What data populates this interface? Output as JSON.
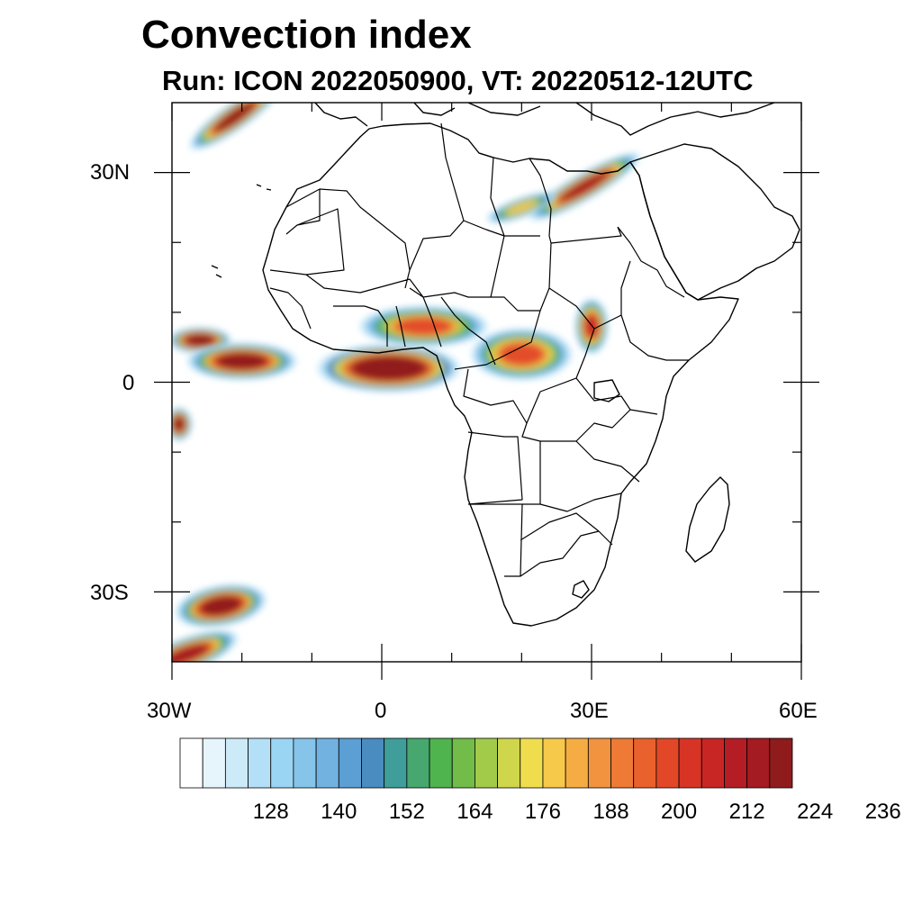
{
  "title": "Convection index",
  "subtitle": "Run: ICON 2022050900,  VT: 20220512-12UTC",
  "axes": {
    "lat_labels": [
      "30N",
      "0",
      "30S"
    ],
    "lon_labels": [
      "30W",
      "0",
      "30E",
      "60E"
    ],
    "lat_values": [
      30,
      0,
      -30
    ],
    "lon_values": [
      -30,
      0,
      30,
      60
    ],
    "lon_range": [
      -30,
      60
    ],
    "lat_range": [
      -40,
      40
    ]
  },
  "colorbar": {
    "labels": [
      "128",
      "140",
      "152",
      "164",
      "176",
      "188",
      "200",
      "212",
      "224",
      "236"
    ],
    "label_values": [
      128,
      140,
      152,
      164,
      176,
      188,
      200,
      212,
      224,
      236
    ],
    "level_start": 116,
    "level_step": 4,
    "colors": [
      "#ffffff",
      "#e6f4fc",
      "#cdeaf9",
      "#b4e0f7",
      "#9bd5f4",
      "#86c4ea",
      "#71b2e1",
      "#5b9fd4",
      "#4a8cbf",
      "#3f9e9a",
      "#46a86f",
      "#4fb34e",
      "#72bc4a",
      "#a3cb4a",
      "#cfd64c",
      "#f0dd4e",
      "#f6c94a",
      "#f5ad43",
      "#f29340",
      "#ee7a36",
      "#e9612d",
      "#e24828",
      "#d83426",
      "#c82625",
      "#b51d24",
      "#a41b21",
      "#8f1b1d"
    ]
  },
  "fields": [
    {
      "id": "itcz-atlantic-west",
      "lon": -26,
      "lat": 6,
      "peak": 228
    },
    {
      "id": "itcz-atlantic-mid",
      "lon": -20,
      "lat": 3,
      "peak": 222
    },
    {
      "id": "itcz-gulf-guinea",
      "lon": 1,
      "lat": 2,
      "peak": 236
    },
    {
      "id": "west-africa-land",
      "lon": 6,
      "lat": 8,
      "peak": 196
    },
    {
      "id": "central-africa",
      "lon": 20,
      "lat": 4,
      "peak": 198
    },
    {
      "id": "south-sudan",
      "lon": 30,
      "lat": 8,
      "peak": 204
    },
    {
      "id": "egypt-band",
      "lon": 29,
      "lat": 28,
      "peak": 212
    },
    {
      "id": "libya-band",
      "lon": 20,
      "lat": 25,
      "peak": 176
    },
    {
      "id": "iberia-atlantic",
      "lon": -21,
      "lat": 38,
      "peak": 216
    },
    {
      "id": "south-atlantic-low",
      "lon": -23,
      "lat": -32,
      "peak": 222
    },
    {
      "id": "southwest-corner",
      "lon": -28,
      "lat": -39,
      "peak": 212
    },
    {
      "id": "west-edge-south",
      "lon": -29,
      "lat": -6,
      "peak": 218
    }
  ]
}
